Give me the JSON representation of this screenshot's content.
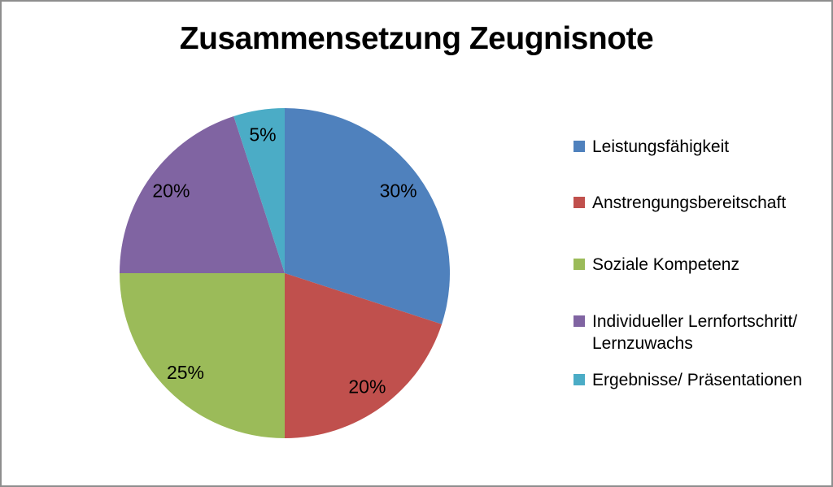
{
  "window": {
    "background": "#ffffff",
    "border_color": "#8e8e8e",
    "text_color": "#000000"
  },
  "chart_data": {
    "type": "pie",
    "title": "Zusammensetzung Zeugnisnote",
    "direction": "clockwise",
    "start_angle_deg": 0,
    "legend_position": "right",
    "data_labels": "percent",
    "slices": [
      {
        "label": "Leistungsfähigkeit",
        "value": 30,
        "percent_label": "30%",
        "color": "#4F81BD",
        "legend_text": "Leistungsfähigkeit"
      },
      {
        "label": "Anstrengungsbereitschaft",
        "value": 20,
        "percent_label": "20%",
        "color": "#C0504D",
        "legend_text": "Anstrengungsbereitschaft"
      },
      {
        "label": "Soziale Kompetenz",
        "value": 25,
        "percent_label": "25%",
        "color": "#9BBB59",
        "legend_text": "Soziale Kompetenz"
      },
      {
        "label": "Individueller Lernfortschritt/ Lernzuwachs",
        "value": 20,
        "percent_label": "20%",
        "color": "#8064A2",
        "legend_text": "Individueller Lernfortschritt/\nLernzuwachs"
      },
      {
        "label": "Ergebnisse/ Präsentationen",
        "value": 5,
        "percent_label": "5%",
        "color": "#4BACC6",
        "legend_text": "Ergebnisse/ Präsentationen"
      }
    ]
  }
}
